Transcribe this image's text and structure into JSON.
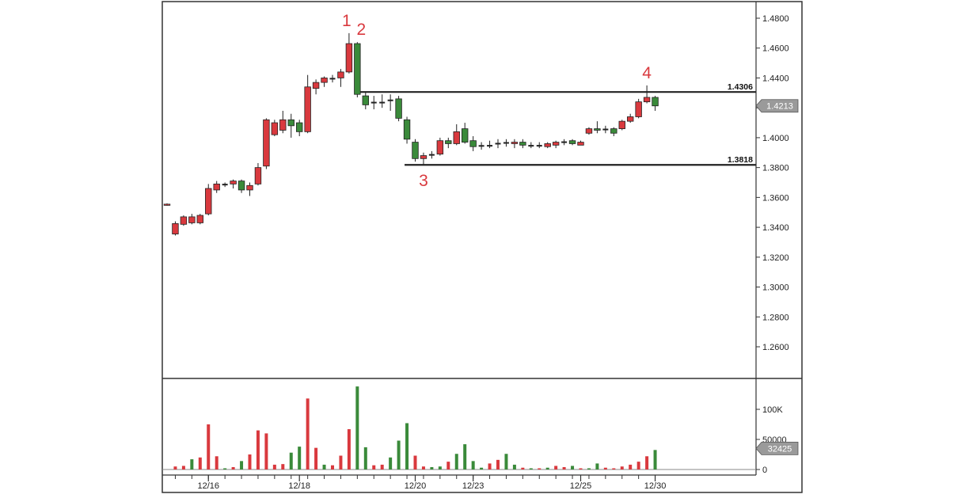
{
  "chart_data": [
    {
      "type": "candlestick",
      "title": "",
      "xlabel": "",
      "ylabel": "",
      "ylim": [
        1.24,
        1.49
      ],
      "y_ticks": [
        "1.4800",
        "1.4600",
        "1.4400",
        "1.4200",
        "1.4000",
        "1.3800",
        "1.3600",
        "1.3400",
        "1.3200",
        "1.3000",
        "1.2800",
        "1.2600"
      ],
      "x_ticks": [
        "12/16",
        "12/18",
        "12/20",
        "12/23",
        "12/25",
        "12/30"
      ],
      "candles": [
        {
          "o": 1.355,
          "h": 1.356,
          "l": 1.3545,
          "c": 1.3555,
          "color": "red"
        },
        {
          "o": 1.3355,
          "h": 1.344,
          "l": 1.3345,
          "c": 1.3425,
          "color": "red"
        },
        {
          "o": 1.342,
          "h": 1.348,
          "l": 1.341,
          "c": 1.347,
          "color": "red"
        },
        {
          "o": 1.343,
          "h": 1.349,
          "l": 1.342,
          "c": 1.347,
          "color": "red"
        },
        {
          "o": 1.343,
          "h": 1.349,
          "l": 1.342,
          "c": 1.348,
          "color": "red"
        },
        {
          "o": 1.349,
          "h": 1.369,
          "l": 1.348,
          "c": 1.366,
          "color": "red"
        },
        {
          "o": 1.365,
          "h": 1.371,
          "l": 1.363,
          "c": 1.369,
          "color": "red"
        },
        {
          "o": 1.369,
          "h": 1.37,
          "l": 1.367,
          "c": 1.3685,
          "color": "black"
        },
        {
          "o": 1.369,
          "h": 1.372,
          "l": 1.366,
          "c": 1.371,
          "color": "red"
        },
        {
          "o": 1.371,
          "h": 1.372,
          "l": 1.363,
          "c": 1.365,
          "color": "green"
        },
        {
          "o": 1.365,
          "h": 1.37,
          "l": 1.361,
          "c": 1.368,
          "color": "red"
        },
        {
          "o": 1.369,
          "h": 1.383,
          "l": 1.368,
          "c": 1.38,
          "color": "red"
        },
        {
          "o": 1.381,
          "h": 1.413,
          "l": 1.379,
          "c": 1.412,
          "color": "red"
        },
        {
          "o": 1.402,
          "h": 1.412,
          "l": 1.401,
          "c": 1.41,
          "color": "red"
        },
        {
          "o": 1.405,
          "h": 1.418,
          "l": 1.403,
          "c": 1.412,
          "color": "red"
        },
        {
          "o": 1.412,
          "h": 1.416,
          "l": 1.4,
          "c": 1.408,
          "color": "green"
        },
        {
          "o": 1.41,
          "h": 1.412,
          "l": 1.401,
          "c": 1.404,
          "color": "green"
        },
        {
          "o": 1.404,
          "h": 1.442,
          "l": 1.403,
          "c": 1.434,
          "color": "red"
        },
        {
          "o": 1.433,
          "h": 1.439,
          "l": 1.429,
          "c": 1.437,
          "color": "red"
        },
        {
          "o": 1.437,
          "h": 1.441,
          "l": 1.434,
          "c": 1.44,
          "color": "red"
        },
        {
          "o": 1.44,
          "h": 1.442,
          "l": 1.437,
          "c": 1.439,
          "color": "black"
        },
        {
          "o": 1.44,
          "h": 1.446,
          "l": 1.434,
          "c": 1.444,
          "color": "red"
        },
        {
          "o": 1.444,
          "h": 1.47,
          "l": 1.443,
          "c": 1.463,
          "color": "red"
        },
        {
          "o": 1.463,
          "h": 1.464,
          "l": 1.427,
          "c": 1.429,
          "color": "green"
        },
        {
          "o": 1.428,
          "h": 1.431,
          "l": 1.419,
          "c": 1.422,
          "color": "green"
        },
        {
          "o": 1.424,
          "h": 1.428,
          "l": 1.419,
          "c": 1.423,
          "color": "black"
        },
        {
          "o": 1.424,
          "h": 1.429,
          "l": 1.42,
          "c": 1.423,
          "color": "black"
        },
        {
          "o": 1.426,
          "h": 1.429,
          "l": 1.418,
          "c": 1.424,
          "color": "black"
        },
        {
          "o": 1.426,
          "h": 1.428,
          "l": 1.411,
          "c": 1.413,
          "color": "green"
        },
        {
          "o": 1.412,
          "h": 1.414,
          "l": 1.396,
          "c": 1.399,
          "color": "green"
        },
        {
          "o": 1.397,
          "h": 1.399,
          "l": 1.384,
          "c": 1.386,
          "color": "green"
        },
        {
          "o": 1.386,
          "h": 1.39,
          "l": 1.3818,
          "c": 1.388,
          "color": "red"
        },
        {
          "o": 1.389,
          "h": 1.391,
          "l": 1.386,
          "c": 1.388,
          "color": "black"
        },
        {
          "o": 1.389,
          "h": 1.4,
          "l": 1.388,
          "c": 1.398,
          "color": "red"
        },
        {
          "o": 1.396,
          "h": 1.4,
          "l": 1.393,
          "c": 1.398,
          "color": "green"
        },
        {
          "o": 1.396,
          "h": 1.409,
          "l": 1.395,
          "c": 1.404,
          "color": "red"
        },
        {
          "o": 1.406,
          "h": 1.41,
          "l": 1.396,
          "c": 1.397,
          "color": "green"
        },
        {
          "o": 1.398,
          "h": 1.401,
          "l": 1.391,
          "c": 1.394,
          "color": "green"
        },
        {
          "o": 1.395,
          "h": 1.397,
          "l": 1.392,
          "c": 1.394,
          "color": "black"
        },
        {
          "o": 1.395,
          "h": 1.398,
          "l": 1.393,
          "c": 1.395,
          "color": "black"
        },
        {
          "o": 1.395,
          "h": 1.399,
          "l": 1.393,
          "c": 1.397,
          "color": "black"
        },
        {
          "o": 1.396,
          "h": 1.399,
          "l": 1.394,
          "c": 1.397,
          "color": "black"
        },
        {
          "o": 1.396,
          "h": 1.399,
          "l": 1.393,
          "c": 1.397,
          "color": "red"
        },
        {
          "o": 1.397,
          "h": 1.399,
          "l": 1.393,
          "c": 1.395,
          "color": "green"
        },
        {
          "o": 1.395,
          "h": 1.397,
          "l": 1.393,
          "c": 1.395,
          "color": "black"
        },
        {
          "o": 1.395,
          "h": 1.397,
          "l": 1.393,
          "c": 1.395,
          "color": "black"
        },
        {
          "o": 1.394,
          "h": 1.397,
          "l": 1.393,
          "c": 1.396,
          "color": "red"
        },
        {
          "o": 1.395,
          "h": 1.398,
          "l": 1.393,
          "c": 1.397,
          "color": "red"
        },
        {
          "o": 1.396,
          "h": 1.399,
          "l": 1.395,
          "c": 1.398,
          "color": "black"
        },
        {
          "o": 1.398,
          "h": 1.399,
          "l": 1.395,
          "c": 1.396,
          "color": "green"
        },
        {
          "o": 1.395,
          "h": 1.398,
          "l": 1.395,
          "c": 1.397,
          "color": "red"
        },
        {
          "o": 1.403,
          "h": 1.407,
          "l": 1.402,
          "c": 1.406,
          "color": "red"
        },
        {
          "o": 1.406,
          "h": 1.411,
          "l": 1.403,
          "c": 1.405,
          "color": "green"
        },
        {
          "o": 1.405,
          "h": 1.408,
          "l": 1.403,
          "c": 1.406,
          "color": "black"
        },
        {
          "o": 1.406,
          "h": 1.407,
          "l": 1.401,
          "c": 1.403,
          "color": "green"
        },
        {
          "o": 1.406,
          "h": 1.412,
          "l": 1.405,
          "c": 1.411,
          "color": "red"
        },
        {
          "o": 1.411,
          "h": 1.416,
          "l": 1.41,
          "c": 1.414,
          "color": "red"
        },
        {
          "o": 1.414,
          "h": 1.426,
          "l": 1.413,
          "c": 1.424,
          "color": "red"
        },
        {
          "o": 1.424,
          "h": 1.435,
          "l": 1.423,
          "c": 1.427,
          "color": "red"
        },
        {
          "o": 1.427,
          "h": 1.428,
          "l": 1.418,
          "c": 1.4213,
          "color": "green"
        }
      ],
      "levels": [
        {
          "label": "1.4306",
          "value": 1.4306
        },
        {
          "label": "1.3818",
          "value": 1.3818
        }
      ],
      "last_price": "1.4213",
      "annotations": [
        {
          "text": "1"
        },
        {
          "text": "2"
        },
        {
          "text": "3"
        },
        {
          "text": "4"
        }
      ]
    },
    {
      "type": "bar",
      "title": "",
      "ylim": [
        0,
        150000
      ],
      "y_ticks": [
        "100K",
        "50000",
        "0"
      ],
      "last_volume": "32425",
      "values": [
        0,
        5000,
        6000,
        17000,
        20000,
        75000,
        22000,
        2000,
        4000,
        14000,
        25000,
        65000,
        60000,
        8000,
        9000,
        28000,
        38000,
        118000,
        36000,
        8000,
        7000,
        23000,
        67000,
        138000,
        37000,
        7000,
        8000,
        20000,
        48000,
        77000,
        23000,
        5000,
        4000,
        5000,
        13000,
        26000,
        42000,
        14000,
        3000,
        10000,
        16000,
        26000,
        8000,
        3000,
        2000,
        2000,
        3000,
        6000,
        4000,
        6000,
        2000,
        2000,
        10000,
        3000,
        2000,
        5000,
        8000,
        13000,
        22000,
        32425
      ],
      "colors": [
        "red",
        "red",
        "red",
        "green",
        "red",
        "red",
        "red",
        "green",
        "red",
        "green",
        "red",
        "red",
        "red",
        "red",
        "red",
        "green",
        "green",
        "red",
        "red",
        "green",
        "red",
        "red",
        "red",
        "green",
        "green",
        "red",
        "red",
        "green",
        "green",
        "green",
        "red",
        "red",
        "green",
        "green",
        "red",
        "green",
        "green",
        "green",
        "green",
        "red",
        "red",
        "green",
        "green",
        "red",
        "green",
        "red",
        "green",
        "red",
        "red",
        "green",
        "red",
        "green",
        "green",
        "red",
        "red",
        "red",
        "red",
        "red",
        "red",
        "green"
      ]
    }
  ]
}
